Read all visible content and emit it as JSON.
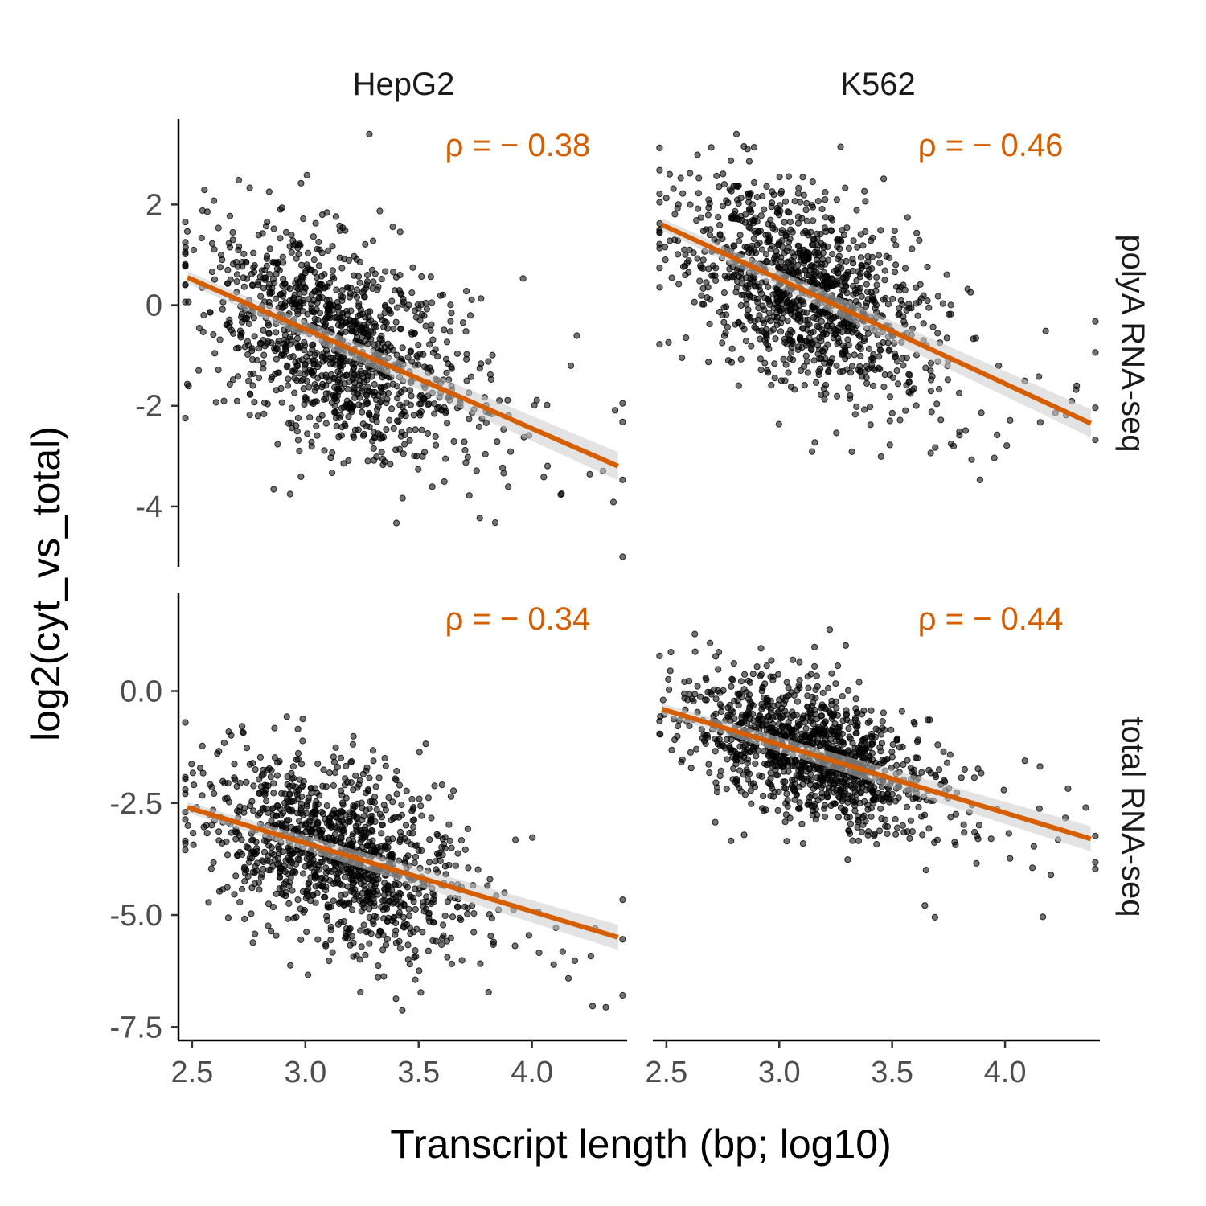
{
  "figure": {
    "xlabel": "Transcript length (bp; log10)",
    "ylabel": "log2(cyt_vs_total)",
    "column_labels": [
      "HepG2",
      "K562"
    ],
    "row_labels": [
      "polyA RNA-seq",
      "total RNA-seq"
    ],
    "colors": {
      "points": "#000000",
      "fit": "#D55E00",
      "ribbon": "#cccccc"
    }
  },
  "chart_data": [
    {
      "type": "scatter",
      "panel": "HepG2 / polyA RNA-seq",
      "annotation": "ρ = − 0.38",
      "xlim": [
        2.44,
        4.42
      ],
      "ylim": [
        -5.2,
        3.7
      ],
      "xticks": [
        "2.5",
        "3.0",
        "3.5",
        "4.0"
      ],
      "yticks": [
        "2",
        "0",
        "-2",
        "-4"
      ],
      "ytick_values": [
        2,
        0,
        -2,
        -4
      ],
      "n_points": 1200,
      "point_cloud": {
        "x_center": 3.12,
        "x_sd": 0.28,
        "y_center": -0.9,
        "y_sd": 1.25
      },
      "fit": {
        "x": [
          2.48,
          4.38
        ],
        "y": [
          0.55,
          -3.2
        ]
      }
    },
    {
      "type": "scatter",
      "panel": "K562 / polyA RNA-seq",
      "annotation": "ρ = − 0.46",
      "xlim": [
        2.44,
        4.42
      ],
      "ylim": [
        -5.2,
        3.7
      ],
      "xticks": [
        "2.5",
        "3.0",
        "3.5",
        "4.0"
      ],
      "yticks": [
        "2",
        "0",
        "-2",
        "-4"
      ],
      "ytick_values": [
        2,
        0,
        -2,
        -4
      ],
      "n_points": 1200,
      "point_cloud": {
        "x_center": 3.1,
        "x_sd": 0.27,
        "y_center": 0.1,
        "y_sd": 1.15
      },
      "fit": {
        "x": [
          2.48,
          4.38
        ],
        "y": [
          1.6,
          -2.35
        ]
      }
    },
    {
      "type": "scatter",
      "panel": "HepG2 / total RNA-seq",
      "annotation": "ρ = − 0.34",
      "xlim": [
        2.44,
        4.42
      ],
      "ylim": [
        -7.8,
        2.2
      ],
      "xticks": [
        "2.5",
        "3.0",
        "3.5",
        "4.0"
      ],
      "yticks": [
        "0.0",
        "-2.5",
        "-5.0",
        "-7.5"
      ],
      "ytick_values": [
        0,
        -2.5,
        -5,
        -7.5
      ],
      "n_points": 1200,
      "point_cloud": {
        "x_center": 3.12,
        "x_sd": 0.28,
        "y_center": -3.7,
        "y_sd": 1.25
      },
      "fit": {
        "x": [
          2.48,
          4.38
        ],
        "y": [
          -2.6,
          -5.5
        ]
      }
    },
    {
      "type": "scatter",
      "panel": "K562 / total RNA-seq",
      "annotation": "ρ = − 0.44",
      "xlim": [
        2.44,
        4.42
      ],
      "ylim": [
        -7.8,
        2.2
      ],
      "xticks": [
        "2.5",
        "3.0",
        "3.5",
        "4.0"
      ],
      "yticks": [
        "0.0",
        "-2.5",
        "-5.0",
        "-7.5"
      ],
      "ytick_values": [
        0,
        -2.5,
        -5,
        -7.5
      ],
      "n_points": 1200,
      "point_cloud": {
        "x_center": 3.12,
        "x_sd": 0.27,
        "y_center": -1.7,
        "y_sd": 0.95
      },
      "fit": {
        "x": [
          2.48,
          4.38
        ],
        "y": [
          -0.4,
          -3.3
        ]
      }
    }
  ]
}
